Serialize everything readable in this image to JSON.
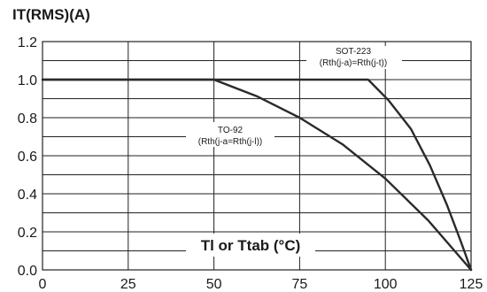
{
  "chart_data": {
    "type": "line",
    "title": "",
    "ylabel": "IT(RMS)(A)",
    "xlabel": "Tl or Ttab (°C)",
    "xlim": [
      0,
      125
    ],
    "ylim": [
      0,
      1.2
    ],
    "x_ticks": [
      "0",
      "25",
      "50",
      "75",
      "100",
      "125"
    ],
    "y_ticks": [
      "0.0",
      "0.2",
      "0.4",
      "0.6",
      "0.8",
      "1.0",
      "1.2"
    ],
    "grid": true,
    "series": [
      {
        "points": [
          [
            0,
            1.0
          ],
          [
            50,
            1.0
          ],
          [
            62.5,
            0.913
          ],
          [
            75,
            0.8
          ],
          [
            87.5,
            0.66
          ],
          [
            100,
            0.48
          ],
          [
            112.5,
            0.26
          ],
          [
            125,
            0.0
          ]
        ]
      },
      {
        "points": [
          [
            0,
            1.0
          ],
          [
            95,
            1.0
          ],
          [
            101,
            0.89
          ],
          [
            107.5,
            0.74
          ],
          [
            113,
            0.55
          ],
          [
            118,
            0.34
          ],
          [
            122,
            0.15
          ],
          [
            125,
            0.0
          ]
        ]
      }
    ],
    "annotations": [
      {
        "line1": "SOT-223",
        "line2": "(Rth(j-a)=Rth(j-t))"
      },
      {
        "line1": "TO-92",
        "line2": "(Rth(j-a=Rth(j-l))"
      }
    ],
    "colors": {
      "line": "#2a2a2a",
      "grid": "#222222",
      "background": "#ffffff"
    }
  }
}
